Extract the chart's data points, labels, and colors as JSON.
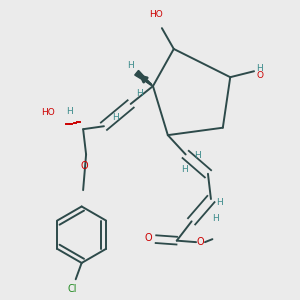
{
  "bg_color": "#ebebeb",
  "bond_color": "#2d4a4a",
  "atom_colors": {
    "O": "#cc0000",
    "Cl": "#228B22",
    "H": "#3a8a8a",
    "C": "#2d4a4a"
  }
}
